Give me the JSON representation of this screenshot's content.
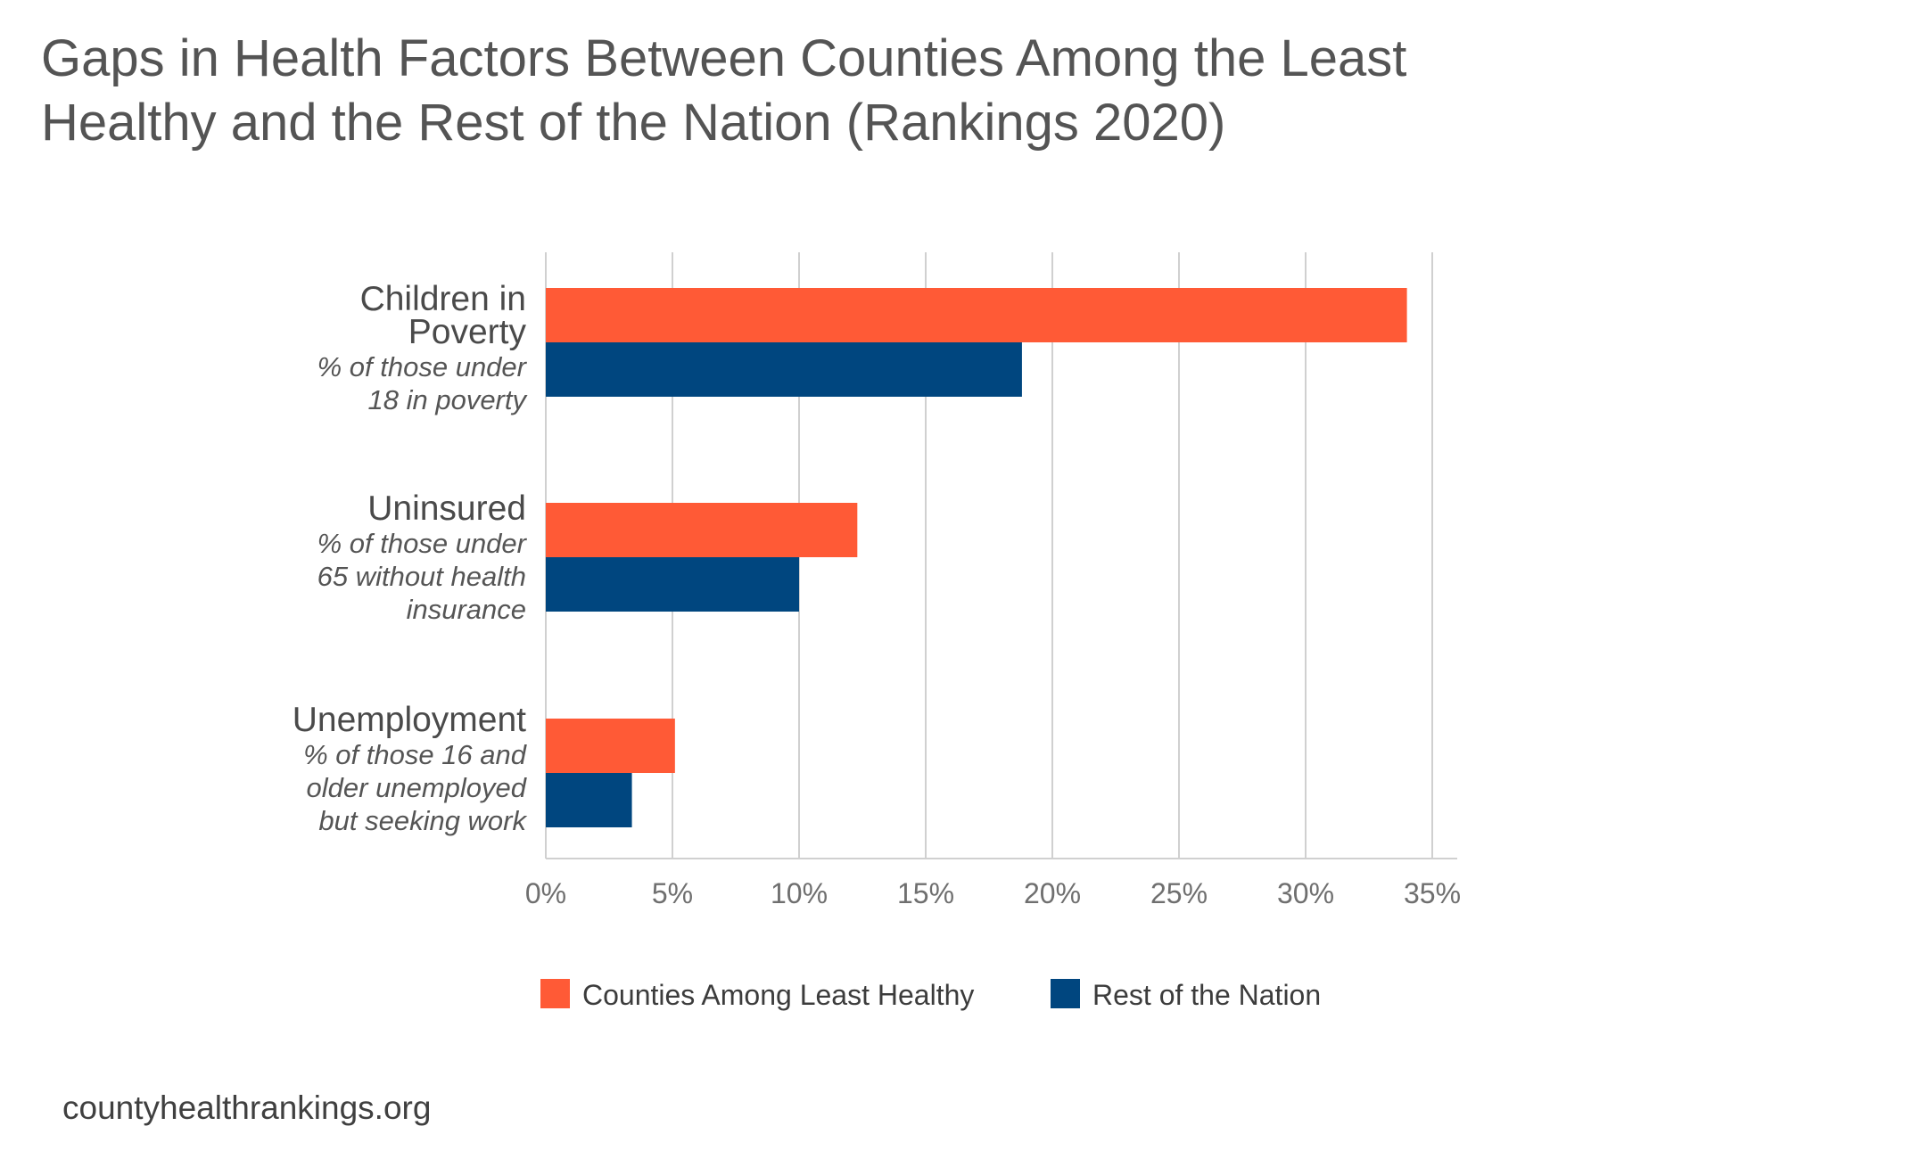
{
  "title": {
    "line1": "Gaps in Health Factors Between Counties Among the Least",
    "line2": "Healthy and the Rest of the Nation (Rankings 2020)"
  },
  "chart_data": {
    "type": "bar",
    "orientation": "horizontal",
    "title": "Gaps in Health Factors Between Counties Among the Least Healthy and the Rest of the Nation (Rankings 2020)",
    "xlabel": "",
    "ylabel": "",
    "xlim": [
      0,
      35
    ],
    "xticks": [
      0,
      5,
      10,
      15,
      20,
      25,
      30,
      35
    ],
    "tick_labels": [
      "0%",
      "5%",
      "10%",
      "15%",
      "20%",
      "25%",
      "30%",
      "35%"
    ],
    "grid": true,
    "legend_position": "bottom",
    "categories": [
      {
        "name": "Children in Poverty",
        "subtitle": "% of those under 18 in poverty"
      },
      {
        "name": "Uninsured",
        "subtitle": "% of those under 65 without health insurance"
      },
      {
        "name": "Unemployment",
        "subtitle": "% of those 16 and older unemployed but seeking work"
      }
    ],
    "category_label_lines": [
      {
        "main": [
          "Children in",
          "Poverty"
        ],
        "sub": [
          "% of those under",
          "18 in poverty"
        ]
      },
      {
        "main": [
          "Uninsured"
        ],
        "sub": [
          "% of those under",
          "65 without health",
          "insurance"
        ]
      },
      {
        "main": [
          "Unemployment"
        ],
        "sub": [
          "% of those 16 and",
          "older unemployed",
          "but seeking work"
        ]
      }
    ],
    "series": [
      {
        "name": "Counties Among Least Healthy",
        "color": "#FF5A36",
        "values": [
          34,
          12.3,
          5.1
        ]
      },
      {
        "name": "Rest of the Nation",
        "color": "#00467F",
        "values": [
          18.8,
          10,
          3.4
        ]
      }
    ]
  },
  "colors": {
    "title_text": "#545454",
    "category_text": "#4a4a4a",
    "subtitle_text": "#555555",
    "tick_text": "#6f6f6f",
    "grid": "#d0d0d0",
    "legend_text": "#3c3c3c",
    "footer_text": "#404040"
  },
  "footer": "countyhealthrankings.org"
}
